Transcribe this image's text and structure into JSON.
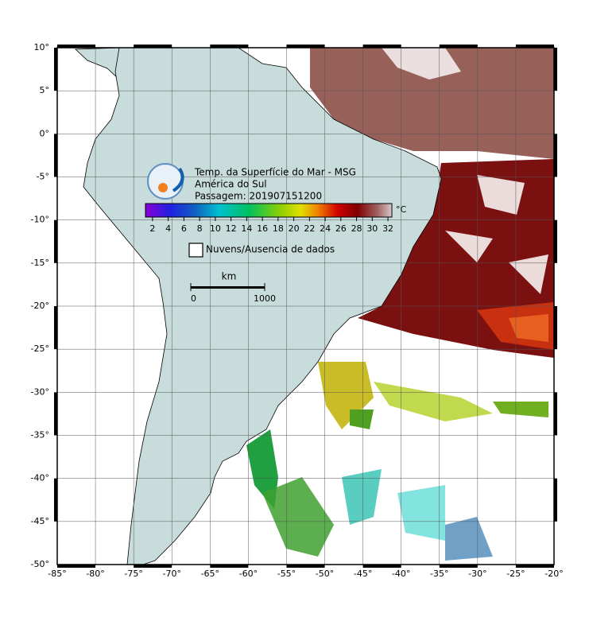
{
  "title_lines": [
    "Temp. da Superfície do Mar - MSG",
    "América do Sul",
    "Passagem: 201907151200"
  ],
  "colorbar": {
    "unit": "°C",
    "lim": [
      1.1,
      32.5
    ],
    "ticks": [
      2,
      4,
      6,
      8,
      10,
      12,
      14,
      16,
      18,
      20,
      22,
      24,
      26,
      28,
      30,
      32
    ]
  },
  "legend": {
    "label": "Nuvens/Ausencia de dados"
  },
  "scale_bar": {
    "unit": "km",
    "ticks": [
      0,
      1000
    ]
  },
  "map": {
    "lonlim": [
      -85,
      -20
    ],
    "latlim": [
      -50,
      10
    ],
    "lon_ticks": [
      {
        "value": -85,
        "label": "-85°"
      },
      {
        "value": -80,
        "label": "-80°"
      },
      {
        "value": -75,
        "label": "-75°"
      },
      {
        "value": -70,
        "label": "-70°"
      },
      {
        "value": -65,
        "label": "-65°"
      },
      {
        "value": -60,
        "label": "-60°"
      },
      {
        "value": -55,
        "label": "-55°"
      },
      {
        "value": -50,
        "label": "-50°"
      },
      {
        "value": -45,
        "label": "-45°"
      },
      {
        "value": -40,
        "label": "-40°"
      },
      {
        "value": -35,
        "label": "-35°"
      },
      {
        "value": -30,
        "label": "-30°"
      },
      {
        "value": -25,
        "label": "-25°"
      },
      {
        "value": -20,
        "label": "-20°"
      }
    ],
    "lat_ticks": [
      {
        "value": 10,
        "label": "10°"
      },
      {
        "value": 5,
        "label": "5°"
      },
      {
        "value": 0,
        "label": "0°"
      },
      {
        "value": -5,
        "label": "-5°"
      },
      {
        "value": -10,
        "label": "-10°"
      },
      {
        "value": -15,
        "label": "-15°"
      },
      {
        "value": -20,
        "label": "-20°"
      },
      {
        "value": -25,
        "label": "-25°"
      },
      {
        "value": -30,
        "label": "-30°"
      },
      {
        "value": -35,
        "label": "-35°"
      },
      {
        "value": -40,
        "label": "-40°"
      },
      {
        "value": -45,
        "label": "-45°"
      },
      {
        "value": -50,
        "label": "-50°"
      }
    ]
  }
}
